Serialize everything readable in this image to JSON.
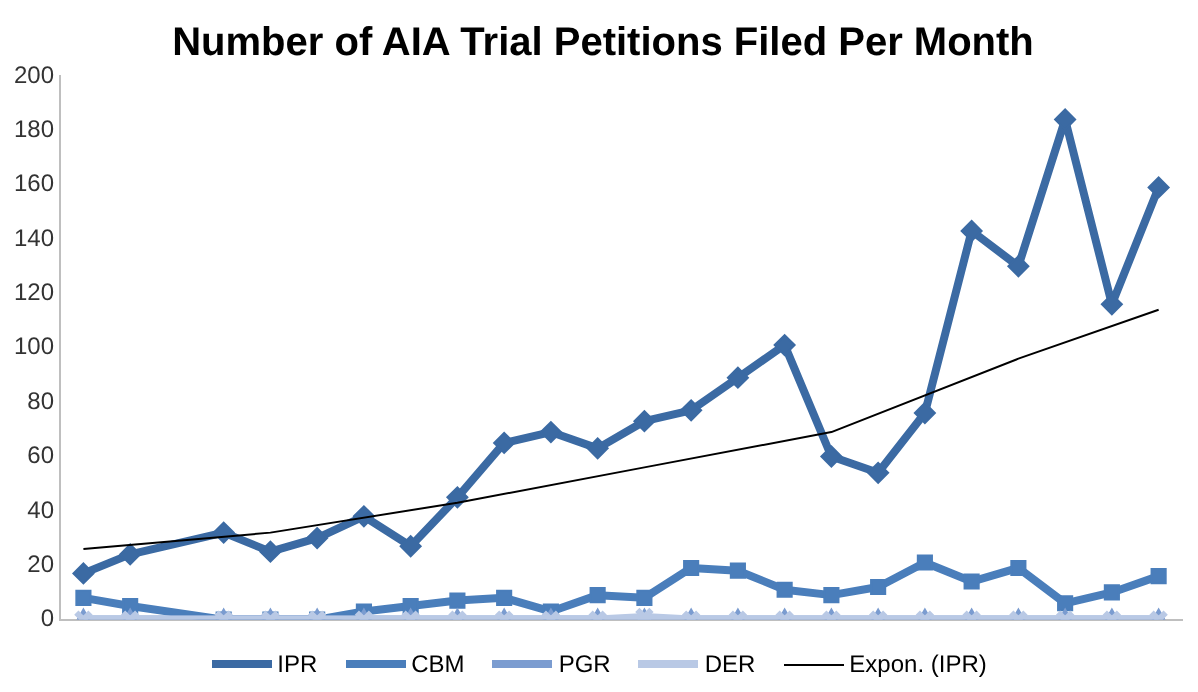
{
  "chart_data": {
    "type": "line",
    "title": "Number of AIA Trial Petitions Filed Per Month",
    "categories": [
      null,
      null,
      null,
      null,
      null,
      null,
      null,
      null,
      null,
      null,
      null,
      null,
      null,
      null,
      null,
      null,
      null,
      null,
      null,
      null,
      null,
      null,
      null,
      null
    ],
    "series": [
      {
        "name": "IPR",
        "color": "#3b6aa3",
        "marker": "diamond",
        "values": [
          17,
          24,
          null,
          32,
          25,
          30,
          38,
          27,
          45,
          65,
          69,
          63,
          73,
          77,
          89,
          101,
          60,
          54,
          76,
          143,
          130,
          184,
          116,
          159
        ]
      },
      {
        "name": "CBM",
        "color": "#4a7ebb",
        "marker": "square",
        "values": [
          8,
          5,
          null,
          0,
          0,
          0,
          3,
          5,
          7,
          8,
          3,
          9,
          8,
          19,
          18,
          11,
          9,
          12,
          21,
          14,
          19,
          6,
          10,
          16
        ]
      },
      {
        "name": "PGR",
        "color": "#7b9cd0",
        "marker": "triangle",
        "values": [
          0,
          0,
          null,
          0,
          0,
          0,
          0,
          0,
          0,
          0,
          0,
          0,
          0,
          0,
          0,
          0,
          0,
          0,
          0,
          0,
          0,
          0,
          0,
          0
        ]
      },
      {
        "name": "DER",
        "color": "#b9c9e5",
        "marker": "cross",
        "values": [
          0,
          0,
          null,
          0,
          0,
          0,
          0,
          0,
          0,
          0,
          0,
          0,
          1,
          0,
          0,
          0,
          0,
          0,
          0,
          0,
          0,
          0,
          0,
          0
        ]
      },
      {
        "name": "Expon. (IPR)",
        "color": "#000000",
        "marker": "none",
        "values": [
          26,
          null,
          null,
          null,
          32,
          null,
          null,
          null,
          43,
          null,
          null,
          null,
          56,
          null,
          null,
          null,
          69,
          null,
          null,
          null,
          96,
          null,
          null,
          114
        ]
      }
    ],
    "ylim": [
      0,
      200
    ],
    "yticks": [
      0,
      20,
      40,
      60,
      80,
      100,
      120,
      140,
      160,
      180,
      200
    ],
    "grid": false,
    "legend": "bottom"
  }
}
